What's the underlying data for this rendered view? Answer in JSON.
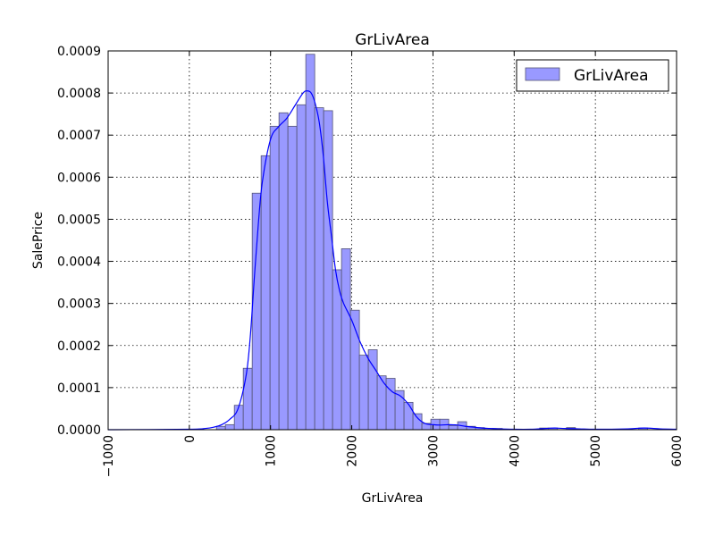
{
  "chart_data": {
    "type": "bar",
    "title": "GrLivArea",
    "xlabel": "GrLivArea",
    "ylabel": "SalePrice",
    "xlim": [
      -1000,
      6000
    ],
    "ylim": [
      0,
      0.0009
    ],
    "grid": true,
    "legend_position": "top-right",
    "x_ticks": [
      "−1000",
      "0",
      "1000",
      "2000",
      "3000",
      "4000",
      "5000",
      "6000"
    ],
    "x_tick_values": [
      -1000,
      0,
      1000,
      2000,
      3000,
      4000,
      5000,
      6000
    ],
    "y_ticks": [
      "0.0000",
      "0.0001",
      "0.0002",
      "0.0003",
      "0.0004",
      "0.0005",
      "0.0006",
      "0.0007",
      "0.0008",
      "0.0009"
    ],
    "y_tick_values": [
      0,
      0.0001,
      0.0002,
      0.0003,
      0.0004,
      0.0005,
      0.0006,
      0.0007,
      0.0008,
      0.0009
    ],
    "series": [
      {
        "name": "GrLivArea",
        "kind": "histogram",
        "color": "#9999ff",
        "edge_color": "#555577",
        "bin_width": 110,
        "bin_starts": [
          334,
          444,
          554,
          664,
          774,
          884,
          994,
          1104,
          1214,
          1324,
          1434,
          1544,
          1654,
          1764,
          1874,
          1984,
          2094,
          2204,
          2314,
          2424,
          2534,
          2644,
          2754,
          2864,
          2974,
          3084,
          3194,
          3304,
          3414,
          3524,
          3634,
          3744,
          4314,
          4424,
          4644,
          5534
        ],
        "densities": [
          8e-06,
          1.2e-05,
          5.8e-05,
          0.000146,
          0.000562,
          0.000651,
          0.000721,
          0.000753,
          0.000721,
          0.000772,
          0.000892,
          0.000765,
          0.000758,
          0.00038,
          0.00043,
          0.000284,
          0.000177,
          0.00019,
          0.000128,
          0.000122,
          9.3e-05,
          6.5e-05,
          3.8e-05,
          1.5e-05,
          2.5e-05,
          2.5e-05,
          1e-05,
          1.9e-05,
          8e-06,
          5e-06,
          3e-06,
          3e-06,
          4e-06,
          4e-06,
          5e-06,
          4e-06
        ]
      },
      {
        "name": "",
        "kind": "kde",
        "color": "#0000ff",
        "x": [
          -1000,
          0,
          200,
          300,
          400,
          500,
          600,
          700,
          750,
          800,
          850,
          900,
          1000,
          1100,
          1200,
          1300,
          1400,
          1450,
          1500,
          1550,
          1600,
          1650,
          1700,
          1750,
          1800,
          1850,
          1900,
          2000,
          2100,
          2200,
          2300,
          2400,
          2500,
          2600,
          2700,
          2800,
          2900,
          3000,
          3100,
          3200,
          3300,
          3400,
          3500,
          3600,
          3700,
          3800,
          4000,
          4200,
          4400,
          4500,
          4600,
          4800,
          5000,
          5400,
          5600,
          5800,
          6000
        ],
        "y": [
          0,
          1e-06,
          3e-06,
          6e-06,
          1.2e-05,
          2.5e-05,
          5e-05,
          0.00013,
          0.00022,
          0.00036,
          0.00049,
          0.00059,
          0.00069,
          0.00072,
          0.00074,
          0.00077,
          0.0008,
          0.000805,
          0.0008,
          0.000775,
          0.00073,
          0.00065,
          0.00054,
          0.00046,
          0.00038,
          0.00033,
          0.0003,
          0.00026,
          0.00021,
          0.00017,
          0.00014,
          0.00011,
          9e-05,
          8e-05,
          6e-05,
          3e-05,
          1.5e-05,
          1.2e-05,
          1.1e-05,
          1.2e-05,
          1.1e-05,
          8e-06,
          6e-06,
          4e-06,
          3e-06,
          2e-06,
          1e-06,
          1e-06,
          3e-06,
          4e-06,
          3e-06,
          2e-06,
          1e-06,
          2e-06,
          4e-06,
          2e-06,
          1e-06
        ]
      }
    ]
  }
}
